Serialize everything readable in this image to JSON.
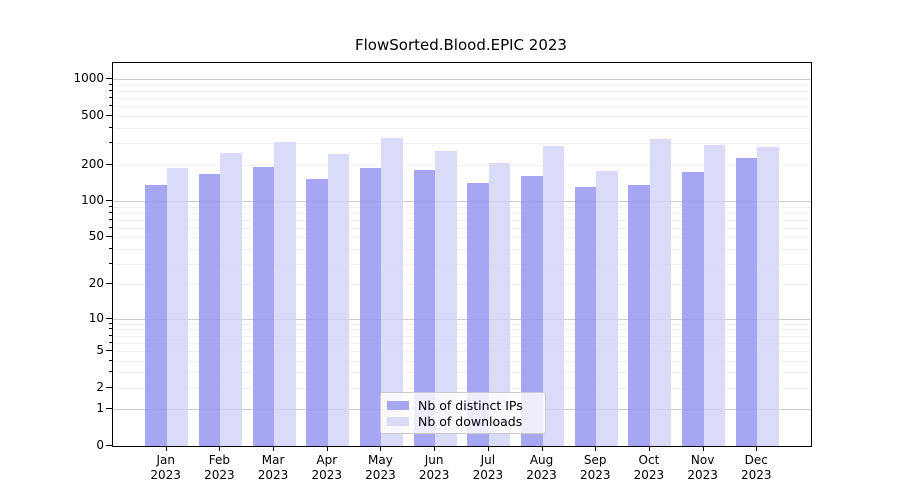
{
  "chart_data": {
    "type": "bar",
    "title": "FlowSorted.Blood.EPIC 2023",
    "categories": [
      "Jan",
      "Feb",
      "Mar",
      "Apr",
      "May",
      "Jun",
      "Jul",
      "Aug",
      "Sep",
      "Oct",
      "Nov",
      "Dec"
    ],
    "category_year": "2023",
    "series": [
      {
        "name": "Nb of distinct IPs",
        "color": "rgba(150,150,240,0.85)",
        "legend_color": "#a6a6f1",
        "values": [
          135,
          166,
          191,
          152,
          188,
          182,
          140,
          162,
          130,
          136,
          175,
          225
        ]
      },
      {
        "name": "Nb of downloads",
        "color": "rgba(210,210,248,0.82)",
        "legend_color": "#dadaf7",
        "values": [
          187,
          247,
          309,
          243,
          329,
          258,
          204,
          284,
          177,
          322,
          290,
          278
        ]
      }
    ],
    "y_scale": "log10(1+v)",
    "ylim": [
      0,
      1360
    ],
    "y_ticks": [
      1000,
      500,
      200,
      100,
      50,
      20,
      10,
      5,
      2,
      1,
      0
    ],
    "y_major_grid": [
      1,
      10,
      100,
      1000
    ],
    "y_minor_grid": [
      2,
      3,
      4,
      5,
      6,
      7,
      8,
      9,
      20,
      30,
      40,
      50,
      60,
      70,
      80,
      90,
      200,
      300,
      400,
      500,
      600,
      700,
      800,
      900
    ],
    "grid": "horizontal",
    "legend_position": "lower center",
    "colors": {
      "major_grid": "#cccccc",
      "minor_grid": "#f0f0f0",
      "axis": "#000000",
      "background": "#ffffff"
    }
  }
}
